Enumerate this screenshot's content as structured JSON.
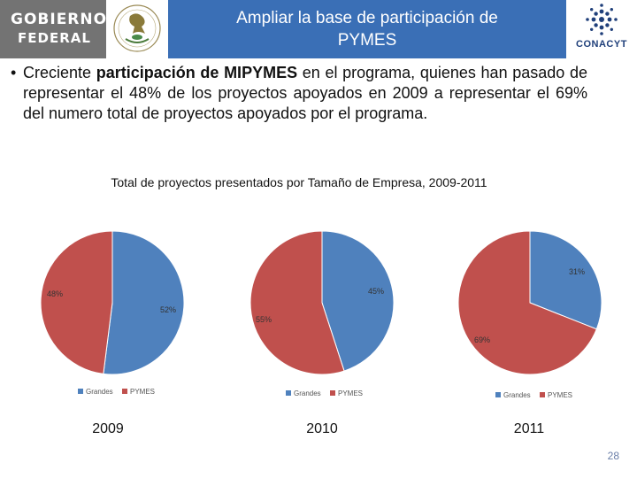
{
  "header": {
    "gobierno_line1": "GOBIERNO",
    "gobierno_line2": "FEDERAL",
    "title_line1": "Ampliar la base de participación de",
    "title_line2": "PYMES",
    "conacyt_label": "CONACYT"
  },
  "bullet": {
    "pre": "Creciente ",
    "bold": "participación de MIPYMES",
    "post": " en el programa, quienes han pasado de representar el 48% de los proyectos apoyados en 2009 a representar el 69% del numero total de proyectos apoyados por el programa."
  },
  "chart_title": "Total de proyectos presentados por Tamaño de Empresa, 2009-2011",
  "colors": {
    "grandes": "#4f81bd",
    "pymes": "#c0504d",
    "header_blue": "#3a6fb6",
    "header_gray": "#737373"
  },
  "chart_data": [
    {
      "type": "pie",
      "year": "2009",
      "categories": [
        "Grandes",
        "PYMES"
      ],
      "values": [
        52,
        48
      ],
      "labels": [
        "52%",
        "48%"
      ],
      "legend": [
        "Grandes",
        "PYMES"
      ]
    },
    {
      "type": "pie",
      "year": "2010",
      "categories": [
        "Grandes",
        "PYMES"
      ],
      "values": [
        45,
        55
      ],
      "labels": [
        "45%",
        "55%"
      ],
      "legend": [
        "Grandes",
        "PYMES"
      ]
    },
    {
      "type": "pie",
      "year": "2011",
      "categories": [
        "Grandes",
        "PYMES"
      ],
      "values": [
        31,
        69
      ],
      "labels": [
        "31%",
        "69%"
      ],
      "legend": [
        "Grandes",
        "PYMES"
      ]
    }
  ],
  "page_number": "28"
}
